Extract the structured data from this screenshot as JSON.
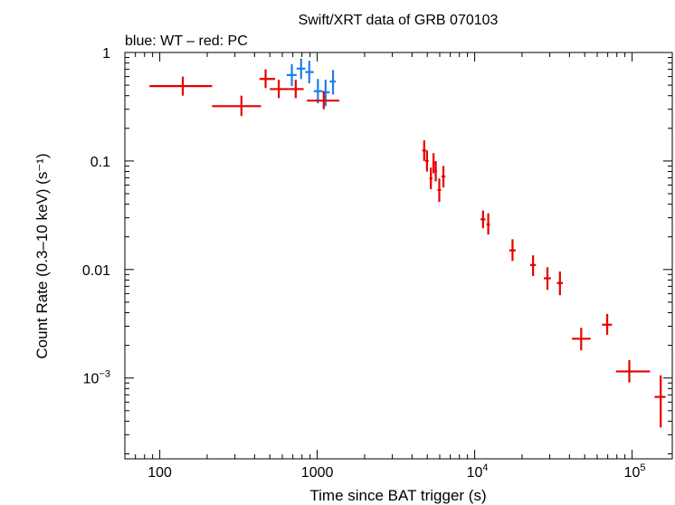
{
  "chart_data": {
    "type": "scatter",
    "title": "Swift/XRT data of GRB 070103",
    "subtitle": "blue: WT – red: PC",
    "xlabel": "Time since BAT trigger (s)",
    "ylabel": "Count Rate (0.3–10 keV) (s⁻¹)",
    "xscale": "log",
    "yscale": "log",
    "xlim": [
      60,
      180000
    ],
    "ylim": [
      0.00018,
      1.0
    ],
    "x_ticks": [
      {
        "value": 100,
        "label": "100"
      },
      {
        "value": 1000,
        "label": "1000"
      },
      {
        "value": 10000,
        "label": "10",
        "sup": "4"
      },
      {
        "value": 100000,
        "label": "10",
        "sup": "5"
      }
    ],
    "y_ticks": [
      {
        "value": 1,
        "label": "1"
      },
      {
        "value": 0.1,
        "label": "0.1"
      },
      {
        "value": 0.01,
        "label": "0.01"
      },
      {
        "value": 0.001,
        "label": "10",
        "sup": "−3"
      }
    ],
    "series": [
      {
        "name": "WT",
        "color": "#1a80e6",
        "points": [
          {
            "x": 690,
            "xlo": 640,
            "xhi": 740,
            "y": 0.62,
            "ylo": 0.49,
            "yhi": 0.78
          },
          {
            "x": 790,
            "xlo": 740,
            "xhi": 840,
            "y": 0.71,
            "ylo": 0.57,
            "yhi": 0.88
          },
          {
            "x": 890,
            "xlo": 840,
            "xhi": 950,
            "y": 0.66,
            "ylo": 0.52,
            "yhi": 0.84
          },
          {
            "x": 1010,
            "xlo": 950,
            "xhi": 1080,
            "y": 0.44,
            "ylo": 0.34,
            "yhi": 0.57
          },
          {
            "x": 1130,
            "xlo": 1080,
            "xhi": 1200,
            "y": 0.43,
            "ylo": 0.32,
            "yhi": 0.56
          },
          {
            "x": 1260,
            "xlo": 1200,
            "xhi": 1310,
            "y": 0.54,
            "ylo": 0.41,
            "yhi": 0.69
          }
        ]
      },
      {
        "name": "PC",
        "color": "#e60000",
        "points": [
          {
            "x": 140,
            "xlo": 86,
            "xhi": 215,
            "y": 0.49,
            "ylo": 0.4,
            "yhi": 0.6
          },
          {
            "x": 330,
            "xlo": 215,
            "xhi": 440,
            "y": 0.32,
            "ylo": 0.26,
            "yhi": 0.4
          },
          {
            "x": 470,
            "xlo": 430,
            "xhi": 540,
            "y": 0.57,
            "ylo": 0.47,
            "yhi": 0.7
          },
          {
            "x": 570,
            "xlo": 500,
            "xhi": 660,
            "y": 0.46,
            "ylo": 0.38,
            "yhi": 0.56
          },
          {
            "x": 730,
            "xlo": 660,
            "xhi": 820,
            "y": 0.46,
            "ylo": 0.38,
            "yhi": 0.56
          },
          {
            "x": 1100,
            "xlo": 860,
            "xhi": 1380,
            "y": 0.36,
            "ylo": 0.3,
            "yhi": 0.44
          },
          {
            "x": 4780,
            "xlo": 4650,
            "xhi": 4910,
            "y": 0.125,
            "ylo": 0.1,
            "yhi": 0.155
          },
          {
            "x": 4980,
            "xlo": 4860,
            "xhi": 5100,
            "y": 0.1,
            "ylo": 0.08,
            "yhi": 0.125
          },
          {
            "x": 5270,
            "xlo": 5160,
            "xhi": 5390,
            "y": 0.069,
            "ylo": 0.055,
            "yhi": 0.087
          },
          {
            "x": 5480,
            "xlo": 5390,
            "xhi": 5570,
            "y": 0.095,
            "ylo": 0.077,
            "yhi": 0.118
          },
          {
            "x": 5660,
            "xlo": 5570,
            "xhi": 5760,
            "y": 0.081,
            "ylo": 0.065,
            "yhi": 0.1
          },
          {
            "x": 5960,
            "xlo": 5810,
            "xhi": 6110,
            "y": 0.054,
            "ylo": 0.042,
            "yhi": 0.069
          },
          {
            "x": 6330,
            "xlo": 6150,
            "xhi": 6510,
            "y": 0.072,
            "ylo": 0.057,
            "yhi": 0.09
          },
          {
            "x": 11300,
            "xlo": 10900,
            "xhi": 11700,
            "y": 0.029,
            "ylo": 0.024,
            "yhi": 0.035
          },
          {
            "x": 12200,
            "xlo": 11900,
            "xhi": 12500,
            "y": 0.026,
            "ylo": 0.021,
            "yhi": 0.033
          },
          {
            "x": 17400,
            "xlo": 16600,
            "xhi": 18200,
            "y": 0.015,
            "ylo": 0.012,
            "yhi": 0.019
          },
          {
            "x": 23500,
            "xlo": 22500,
            "xhi": 24500,
            "y": 0.011,
            "ylo": 0.0087,
            "yhi": 0.0135
          },
          {
            "x": 29000,
            "xlo": 27500,
            "xhi": 30500,
            "y": 0.0083,
            "ylo": 0.0065,
            "yhi": 0.0105
          },
          {
            "x": 34800,
            "xlo": 33300,
            "xhi": 36300,
            "y": 0.0075,
            "ylo": 0.0058,
            "yhi": 0.0096
          },
          {
            "x": 47500,
            "xlo": 41500,
            "xhi": 54500,
            "y": 0.0023,
            "ylo": 0.0018,
            "yhi": 0.0029
          },
          {
            "x": 69500,
            "xlo": 64500,
            "xhi": 74500,
            "y": 0.0031,
            "ylo": 0.0025,
            "yhi": 0.0039
          },
          {
            "x": 96000,
            "xlo": 79000,
            "xhi": 130000,
            "y": 0.00115,
            "ylo": 0.00091,
            "yhi": 0.00146
          },
          {
            "x": 152000,
            "xlo": 139000,
            "xhi": 163000,
            "y": 0.00067,
            "ylo": 0.00035,
            "yhi": 0.00106
          }
        ]
      }
    ],
    "grid": false,
    "legend": "none"
  }
}
